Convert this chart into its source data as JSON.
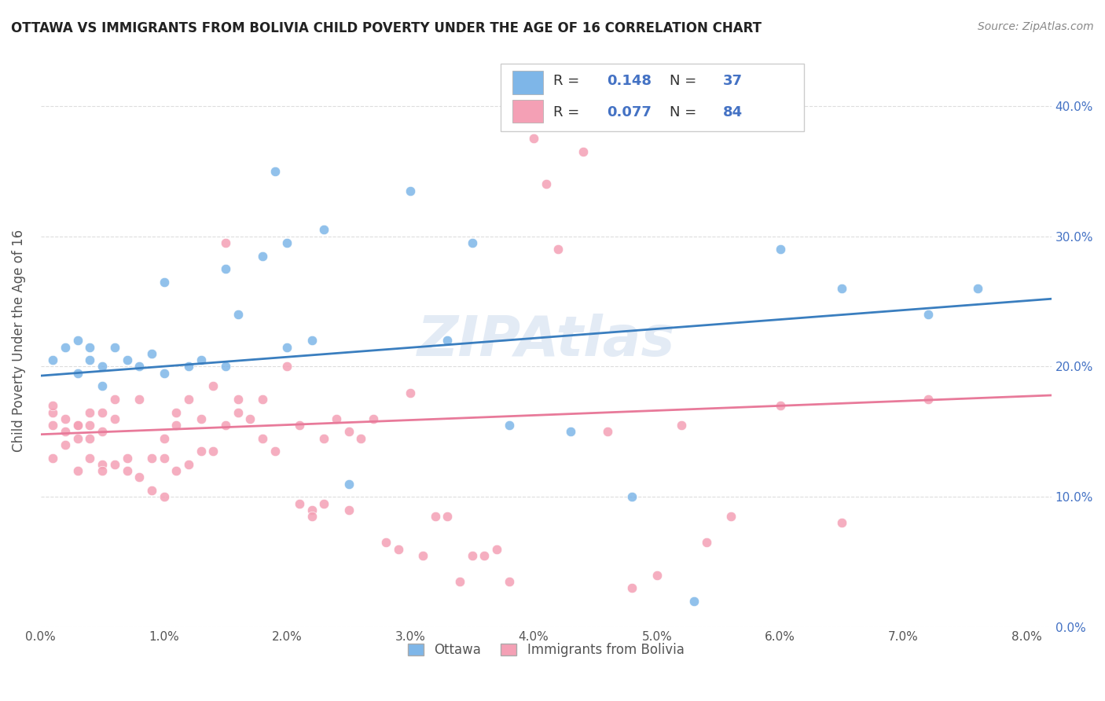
{
  "title": "OTTAWA VS IMMIGRANTS FROM BOLIVIA CHILD POVERTY UNDER THE AGE OF 16 CORRELATION CHART",
  "source": "Source: ZipAtlas.com",
  "ylabel": "Child Poverty Under the Age of 16",
  "watermark": "ZIPAtlas",
  "r1": "0.148",
  "n1": "37",
  "r2": "0.077",
  "n2": "84",
  "ottawa_color": "#7EB6E8",
  "bolivia_color": "#F4A0B5",
  "ottawa_line_color": "#3A7EBF",
  "bolivia_line_color": "#E87A9A",
  "background_color": "#FFFFFF",
  "grid_color": "#DDDDDD",
  "ottawa_scatter_x": [
    0.001,
    0.002,
    0.003,
    0.003,
    0.004,
    0.004,
    0.005,
    0.005,
    0.006,
    0.007,
    0.008,
    0.009,
    0.01,
    0.01,
    0.012,
    0.013,
    0.015,
    0.015,
    0.016,
    0.018,
    0.019,
    0.02,
    0.02,
    0.022,
    0.023,
    0.025,
    0.03,
    0.033,
    0.035,
    0.038,
    0.043,
    0.048,
    0.053,
    0.06,
    0.065,
    0.072,
    0.076
  ],
  "ottawa_scatter_y": [
    0.205,
    0.215,
    0.22,
    0.195,
    0.215,
    0.205,
    0.2,
    0.185,
    0.215,
    0.205,
    0.2,
    0.21,
    0.195,
    0.265,
    0.2,
    0.205,
    0.275,
    0.2,
    0.24,
    0.285,
    0.35,
    0.295,
    0.215,
    0.22,
    0.305,
    0.11,
    0.335,
    0.22,
    0.295,
    0.155,
    0.15,
    0.1,
    0.02,
    0.29,
    0.26,
    0.24,
    0.26
  ],
  "bolivia_scatter_x": [
    0.001,
    0.001,
    0.001,
    0.001,
    0.002,
    0.002,
    0.002,
    0.003,
    0.003,
    0.003,
    0.003,
    0.004,
    0.004,
    0.004,
    0.004,
    0.005,
    0.005,
    0.005,
    0.005,
    0.006,
    0.006,
    0.006,
    0.007,
    0.007,
    0.008,
    0.008,
    0.009,
    0.009,
    0.01,
    0.01,
    0.01,
    0.011,
    0.011,
    0.011,
    0.012,
    0.012,
    0.013,
    0.013,
    0.014,
    0.014,
    0.015,
    0.015,
    0.016,
    0.016,
    0.017,
    0.018,
    0.018,
    0.019,
    0.02,
    0.021,
    0.021,
    0.022,
    0.022,
    0.023,
    0.023,
    0.024,
    0.025,
    0.025,
    0.026,
    0.027,
    0.028,
    0.029,
    0.03,
    0.031,
    0.032,
    0.033,
    0.034,
    0.035,
    0.036,
    0.037,
    0.038,
    0.04,
    0.041,
    0.042,
    0.044,
    0.046,
    0.048,
    0.05,
    0.052,
    0.054,
    0.056,
    0.06,
    0.065,
    0.072
  ],
  "bolivia_scatter_y": [
    0.155,
    0.165,
    0.17,
    0.13,
    0.15,
    0.16,
    0.14,
    0.155,
    0.145,
    0.155,
    0.12,
    0.165,
    0.145,
    0.155,
    0.13,
    0.15,
    0.165,
    0.125,
    0.12,
    0.16,
    0.175,
    0.125,
    0.13,
    0.12,
    0.115,
    0.175,
    0.13,
    0.105,
    0.145,
    0.13,
    0.1,
    0.12,
    0.165,
    0.155,
    0.175,
    0.125,
    0.135,
    0.16,
    0.185,
    0.135,
    0.295,
    0.155,
    0.175,
    0.165,
    0.16,
    0.145,
    0.175,
    0.135,
    0.2,
    0.155,
    0.095,
    0.09,
    0.085,
    0.095,
    0.145,
    0.16,
    0.09,
    0.15,
    0.145,
    0.16,
    0.065,
    0.06,
    0.18,
    0.055,
    0.085,
    0.085,
    0.035,
    0.055,
    0.055,
    0.06,
    0.035,
    0.375,
    0.34,
    0.29,
    0.365,
    0.15,
    0.03,
    0.04,
    0.155,
    0.065,
    0.085,
    0.17,
    0.08,
    0.175
  ],
  "ottawa_trend_x": [
    0.0,
    0.082
  ],
  "ottawa_trend_y": [
    0.193,
    0.252
  ],
  "bolivia_trend_x": [
    0.0,
    0.082
  ],
  "bolivia_trend_y": [
    0.148,
    0.178
  ],
  "xlim": [
    0.0,
    0.082
  ],
  "ylim": [
    0.0,
    0.44
  ],
  "yticks": [
    0.0,
    0.1,
    0.2,
    0.3,
    0.4
  ],
  "xticks": [
    0.0,
    0.01,
    0.02,
    0.03,
    0.04,
    0.05,
    0.06,
    0.07,
    0.08
  ],
  "legend_label1": "Ottawa",
  "legend_label2": "Immigrants from Bolivia",
  "right_tick_color": "#4472C4",
  "text_color": "#555555",
  "title_color": "#222222",
  "source_color": "#888888"
}
